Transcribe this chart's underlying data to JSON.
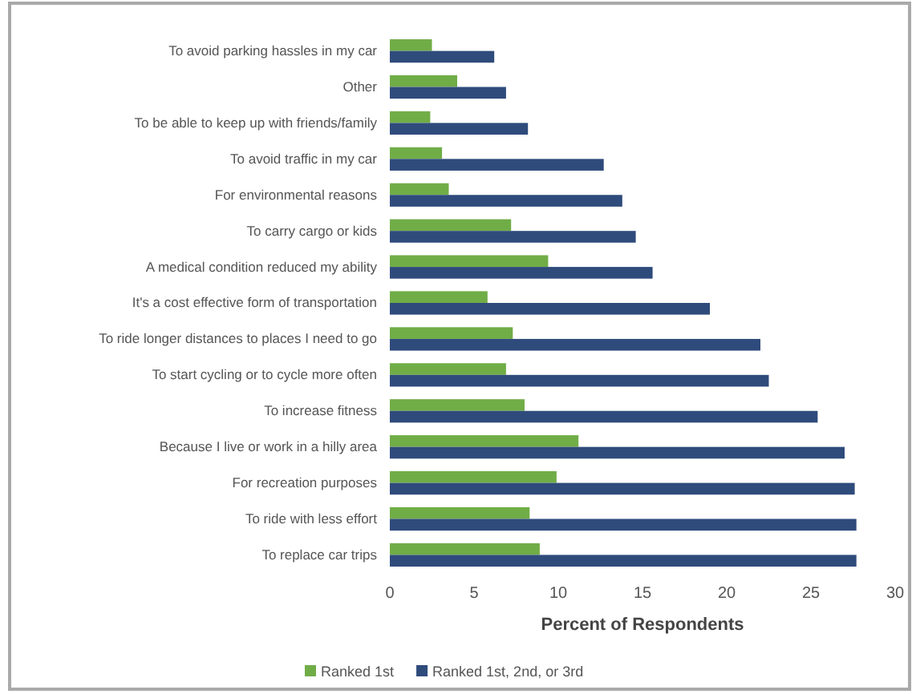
{
  "chart_data": {
    "type": "bar",
    "orientation": "horizontal",
    "xlabel": "Percent of Respondents",
    "categories": [
      "To avoid parking hassles in my car",
      "Other",
      "To be able to keep up with friends/family",
      "To avoid traffic in my car",
      "For environmental reasons",
      "To carry cargo or kids",
      "A medical condition reduced my ability",
      "It's a cost effective form of transportation",
      "To ride longer distances to places I need to go",
      "To start cycling or to cycle more often",
      "To increase fitness",
      "Because I live or work in a hilly area",
      "For recreation purposes",
      "To ride with less effort",
      "To replace car trips"
    ],
    "series": [
      {
        "name": "Ranked 1st",
        "color": "#70ad47",
        "values": [
          2.5,
          4.0,
          2.4,
          3.1,
          3.5,
          7.2,
          9.4,
          5.8,
          7.3,
          6.9,
          8.0,
          11.2,
          9.9,
          8.3,
          8.9
        ]
      },
      {
        "name": "Ranked 1st, 2nd, or 3rd",
        "color": "#2f4b7c",
        "values": [
          6.2,
          6.9,
          8.2,
          12.7,
          13.8,
          14.6,
          15.6,
          19.0,
          22.0,
          22.5,
          25.4,
          27.0,
          27.6,
          27.7,
          27.7
        ]
      }
    ],
    "xlim": [
      0,
      30
    ],
    "xticks": [
      0,
      5,
      10,
      15,
      20,
      25,
      30
    ],
    "grid": false,
    "legend": "bottom"
  }
}
